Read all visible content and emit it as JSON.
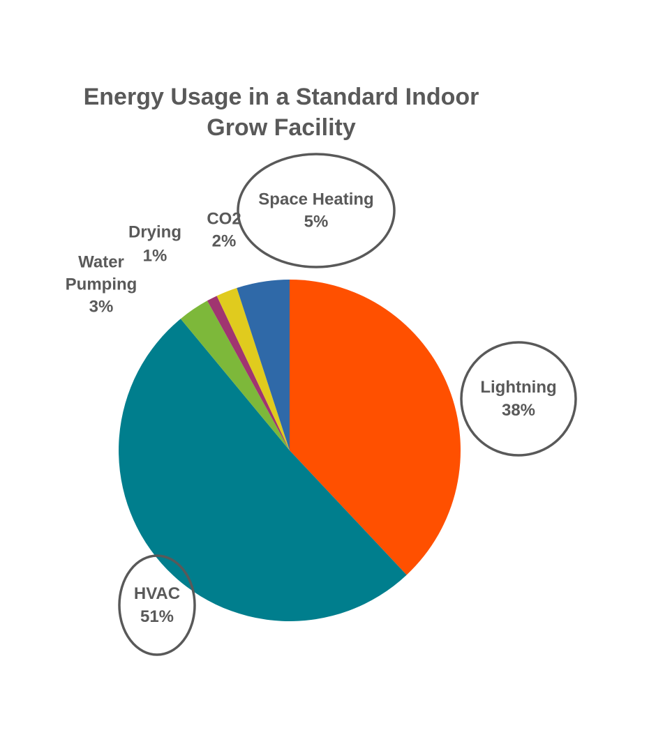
{
  "chart_data": {
    "type": "pie",
    "title": "Energy Usage in a Standard Indoor Grow Facility",
    "title_lines": [
      "Energy Usage in a Standard Indoor",
      "Grow Facility"
    ],
    "start_angle_deg": 0,
    "direction": "clockwise",
    "slices": [
      {
        "id": "lightning",
        "name": "Lightning",
        "name_lines": [
          "Lightning"
        ],
        "value": 38,
        "label": "38%",
        "color": "#FF5000",
        "circled": true
      },
      {
        "id": "hvac",
        "name": "HVAC",
        "name_lines": [
          "HVAC"
        ],
        "value": 51,
        "label": "51%",
        "color": "#007E8D",
        "circled": true
      },
      {
        "id": "water-pumping",
        "name": "Water Pumping",
        "name_lines": [
          "Water",
          "Pumping"
        ],
        "value": 3,
        "label": "3%",
        "color": "#7DB83A",
        "circled": false
      },
      {
        "id": "drying",
        "name": "Drying",
        "name_lines": [
          "Drying"
        ],
        "value": 1,
        "label": "1%",
        "color": "#A03570",
        "circled": false
      },
      {
        "id": "co2",
        "name": "CO2",
        "name_lines": [
          "CO2"
        ],
        "value": 2,
        "label": "2%",
        "color": "#E0CB1E",
        "circled": false
      },
      {
        "id": "space-heating",
        "name": "Space Heating",
        "name_lines": [
          "Space Heating"
        ],
        "value": 5,
        "label": "5%",
        "color": "#2F69A8",
        "circled": true
      }
    ],
    "legend": "none",
    "annotation_ring_color": "#595959"
  }
}
